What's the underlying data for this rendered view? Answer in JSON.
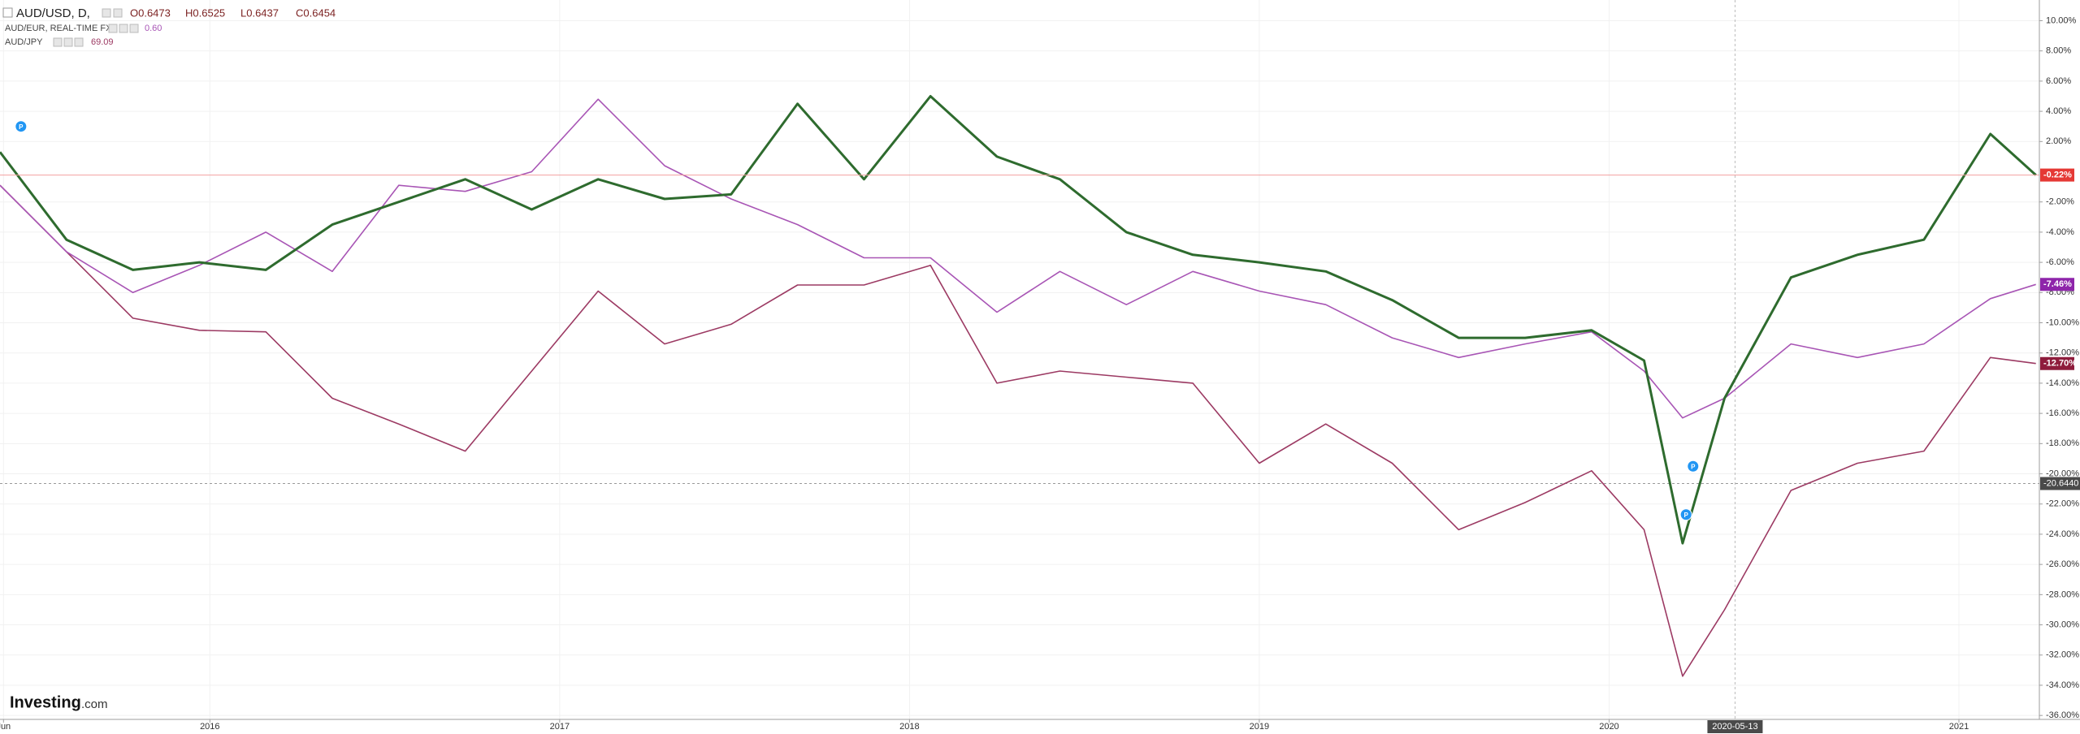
{
  "chart_data": {
    "type": "line",
    "header": {
      "symbol": "AUD/USD, D,",
      "ohlc": [
        "O0.6473",
        "H0.6525",
        "L0.6437",
        "C0.6454"
      ]
    },
    "x": [
      2015.4,
      2015.59,
      2015.78,
      2015.97,
      2016.16,
      2016.35,
      2016.54,
      2016.73,
      2016.92,
      2017.11,
      2017.3,
      2017.49,
      2017.68,
      2017.87,
      2018.06,
      2018.25,
      2018.43,
      2018.62,
      2018.81,
      2019.0,
      2019.19,
      2019.38,
      2019.57,
      2019.76,
      2019.95,
      2020.1,
      2020.21,
      2020.33,
      2020.52,
      2020.71,
      2020.9,
      2021.09,
      2021.22
    ],
    "series": [
      {
        "name": "AUD/USD",
        "color": "#2e6b2e",
        "values": [
          1.3,
          -4.5,
          -6.5,
          -6.0,
          -6.5,
          -3.5,
          -2.0,
          -0.5,
          -2.5,
          -0.5,
          -1.8,
          -1.5,
          4.5,
          -0.5,
          5.0,
          1.0,
          -0.5,
          -4.0,
          -5.5,
          -6.0,
          -6.6,
          -8.5,
          -11.0,
          -11.0,
          -10.5,
          -12.5,
          -24.6,
          -15.0,
          -7.0,
          -5.5,
          -4.5,
          2.5,
          -0.22
        ],
        "value_labels": [
          null,
          null,
          null,
          null,
          null,
          null,
          null,
          null,
          null,
          null,
          null,
          null,
          null,
          null,
          null,
          null,
          null,
          null,
          null,
          null,
          null,
          null,
          null,
          null,
          null,
          null,
          null,
          null,
          null,
          null,
          null,
          null,
          "-0.22%"
        ],
        "label_color": "#e53935"
      },
      {
        "name": "AUD/EUR, REAL-TIME FX",
        "color": "#a855b5",
        "last_price": {
          "value": 0.6,
          "label": "0.60"
        },
        "values": [
          -0.9,
          -5.3,
          -8.0,
          -6.2,
          -4.0,
          -6.6,
          -0.9,
          -1.3,
          0.0,
          4.8,
          0.4,
          -1.8,
          -3.5,
          -5.7,
          -5.7,
          -9.3,
          -6.6,
          -8.8,
          -6.6,
          -7.9,
          -8.8,
          -11.0,
          -12.3,
          -11.4,
          -10.6,
          -13.2,
          -16.3,
          -15.0,
          -11.4,
          -12.3,
          -11.4,
          -8.4,
          -7.46
        ],
        "value_labels": [
          null,
          null,
          null,
          null,
          null,
          null,
          null,
          null,
          null,
          null,
          null,
          null,
          null,
          null,
          null,
          null,
          null,
          null,
          null,
          null,
          null,
          null,
          null,
          null,
          null,
          null,
          null,
          null,
          null,
          null,
          null,
          null,
          "-7.46%"
        ],
        "label_color": "#8e24aa"
      },
      {
        "name": "AUD/JPY",
        "color": "#9c3a63",
        "last_price": 69.09,
        "values": [
          -0.9,
          -5.3,
          -9.7,
          -10.5,
          -10.6,
          -15.0,
          -16.7,
          -18.5,
          -13.2,
          -7.9,
          -11.4,
          -10.1,
          -7.5,
          -7.5,
          -6.2,
          -14.0,
          -13.2,
          -13.6,
          -14.0,
          -19.3,
          -16.7,
          -19.3,
          -23.7,
          -21.9,
          -19.8,
          -23.7,
          -33.4,
          -29.0,
          -21.1,
          -19.3,
          -18.5,
          -12.3,
          -12.7
        ],
        "value_labels": [
          null,
          null,
          null,
          null,
          null,
          null,
          null,
          null,
          null,
          null,
          null,
          null,
          null,
          null,
          null,
          null,
          null,
          null,
          null,
          null,
          null,
          null,
          null,
          null,
          null,
          null,
          null,
          null,
          null,
          null,
          null,
          null,
          "-12.70%"
        ],
        "label_color": "#8e1c3c"
      }
    ],
    "xlim": [
      2015.4,
      2021.23
    ],
    "xticks": [
      {
        "value": 2015.41,
        "label": "Jun"
      },
      {
        "value": 2016,
        "label": "2016"
      },
      {
        "value": 2017,
        "label": "2017"
      },
      {
        "value": 2018,
        "label": "2018"
      },
      {
        "value": 2019,
        "label": "2019"
      },
      {
        "value": 2020,
        "label": "2020"
      },
      {
        "value": 2021,
        "label": "2021"
      }
    ],
    "ylim": [
      -36.26,
      11.37
    ],
    "yticks": [
      {
        "value": 10,
        "label": "10.00%"
      },
      {
        "value": 8,
        "label": "8.00%"
      },
      {
        "value": 6,
        "label": "6.00%"
      },
      {
        "value": 4,
        "label": "4.00%"
      },
      {
        "value": 2,
        "label": "2.00%"
      },
      {
        "value": -2,
        "label": "-2.00%"
      },
      {
        "value": -4,
        "label": "-4.00%"
      },
      {
        "value": -6,
        "label": "-6.00%"
      },
      {
        "value": -8,
        "label": "-8.00%"
      },
      {
        "value": -10,
        "label": "-10.00%"
      },
      {
        "value": -12,
        "label": "-12.00%"
      },
      {
        "value": -14,
        "label": "-14.00%"
      },
      {
        "value": -16,
        "label": "-16.00%"
      },
      {
        "value": -18,
        "label": "-18.00%"
      },
      {
        "value": -20,
        "label": "-20.00%"
      },
      {
        "value": -22,
        "label": "-22.00%"
      },
      {
        "value": -24,
        "label": "-24.00%"
      },
      {
        "value": -26,
        "label": "-26.00%"
      },
      {
        "value": -28,
        "label": "-28.00%"
      },
      {
        "value": -30,
        "label": "-30.00%"
      },
      {
        "value": -32,
        "label": "-32.00%"
      },
      {
        "value": -34,
        "label": "-34.00%"
      },
      {
        "value": -36,
        "label": "-36.00%"
      }
    ],
    "grid": true,
    "crosshair": {
      "x": {
        "value": 2020.36,
        "label": "2020-05-13"
      },
      "y": {
        "value": -20.644,
        "label": "-20.6440"
      }
    },
    "markers": [
      {
        "x": 2015.46,
        "y": 3.0,
        "label": "P"
      },
      {
        "x": 2020.24,
        "y": -19.5,
        "label": "P"
      },
      {
        "x": 2020.22,
        "y": -22.7,
        "label": "P"
      }
    ],
    "logo": {
      "text": "Investing",
      "suffix": ".com"
    }
  }
}
